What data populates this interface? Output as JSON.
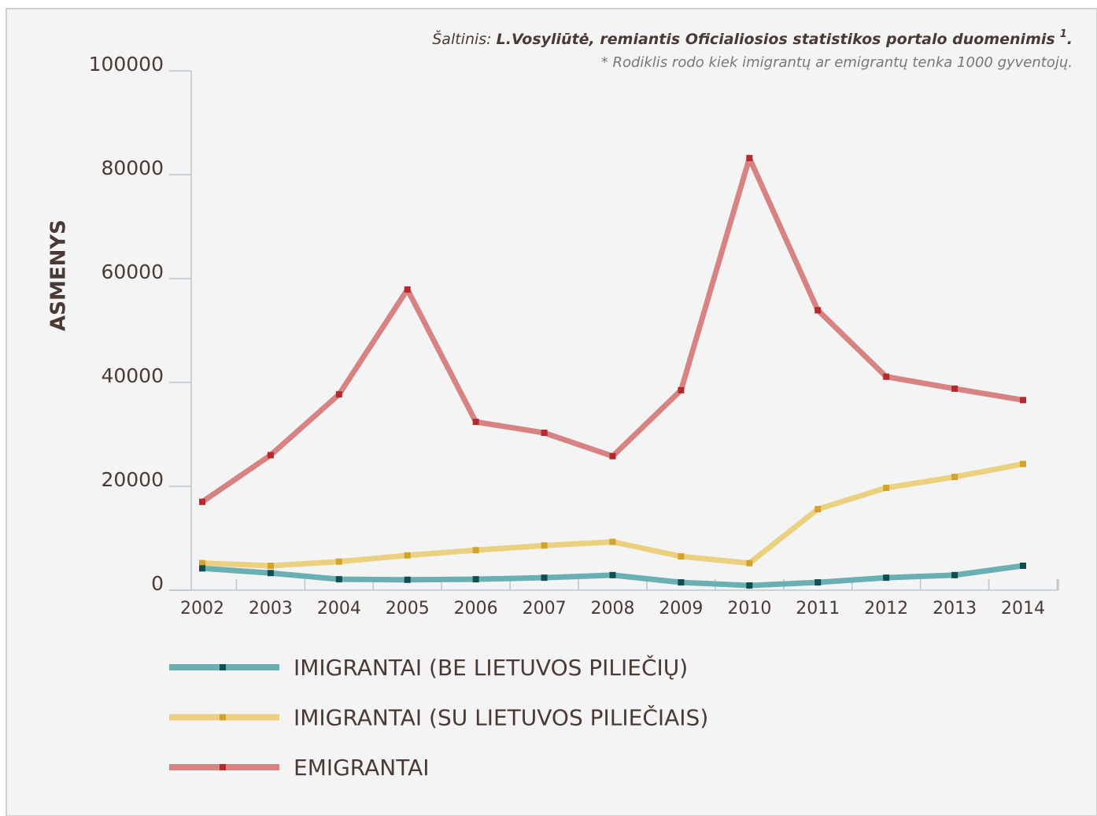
{
  "chart_data": {
    "type": "line",
    "source": {
      "label": "Šaltinis:",
      "text": "L.Vosyliūtė, remiantis Oficialiosios statistikos portalo duomenimis",
      "ref": "1",
      "end": "."
    },
    "note": "* Rodiklis rodo kiek imigrantų ar emigrantų tenka 1000 gyventojų.",
    "y_label": "ASMENYS",
    "categories": [
      "2002",
      "2003",
      "2004",
      "2005",
      "2006",
      "2007",
      "2008",
      "2009",
      "2010",
      "2011",
      "2012",
      "2013",
      "2014"
    ],
    "series": [
      {
        "name": "IMIGRANTAI (BE LIETUVOS PILIEČIŲ)",
        "color": "#6aafb3",
        "marker_color": "#124d4f",
        "values": [
          4200,
          3300,
          2100,
          2000,
          2100,
          2400,
          2900,
          1500,
          900,
          1500,
          2400,
          2900,
          4700
        ]
      },
      {
        "name": "IMIGRANTAI (SU LIETUVOS PILIEČIAIS)",
        "color": "#ebd17f",
        "marker_color": "#d4a42a",
        "values": [
          5200,
          4700,
          5500,
          6700,
          7700,
          8600,
          9300,
          6500,
          5200,
          15600,
          19700,
          21800,
          24300
        ]
      },
      {
        "name": "EMIGRANTAI",
        "color": "#d78383",
        "marker_color": "#b42a2f",
        "values": [
          17000,
          26000,
          37700,
          57900,
          32400,
          30300,
          25800,
          38500,
          83200,
          53900,
          41100,
          38800,
          36600
        ]
      }
    ],
    "ylim": [
      0,
      100000
    ],
    "yticks": [
      0,
      20000,
      40000,
      60000,
      80000,
      100000
    ]
  }
}
